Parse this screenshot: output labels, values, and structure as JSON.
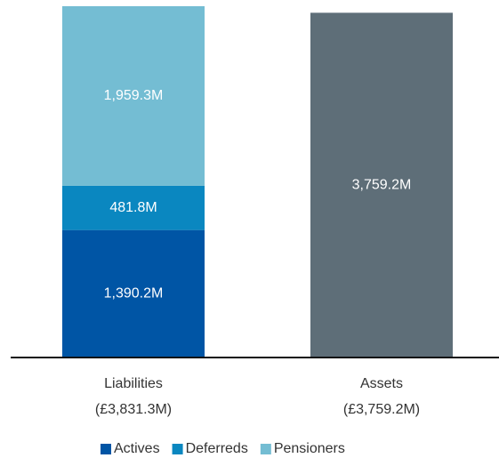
{
  "chart_data": {
    "type": "stacked_bar",
    "categories": [
      [
        "Liabilities",
        "(£3,831.3M)"
      ],
      [
        "Assets",
        "(£3,759.2M)"
      ]
    ],
    "series": [
      {
        "name": "Actives",
        "color": "#0055a5",
        "values": [
          1390.2,
          null
        ],
        "value_labels": [
          "1,390.2M",
          null
        ]
      },
      {
        "name": "Deferreds",
        "color": "#0a87c0",
        "values": [
          481.8,
          null
        ],
        "value_labels": [
          "481.8M",
          null
        ]
      },
      {
        "name": "Pensioners",
        "color": "#74bdd3",
        "values": [
          1959.3,
          null
        ],
        "value_labels": [
          "1,959.3M",
          null
        ]
      },
      {
        "color": "#5e6e78",
        "values": [
          null,
          3759.2
        ],
        "value_labels": [
          null,
          "3,759.2M"
        ]
      }
    ],
    "ylim": [
      0,
      3850
    ]
  }
}
